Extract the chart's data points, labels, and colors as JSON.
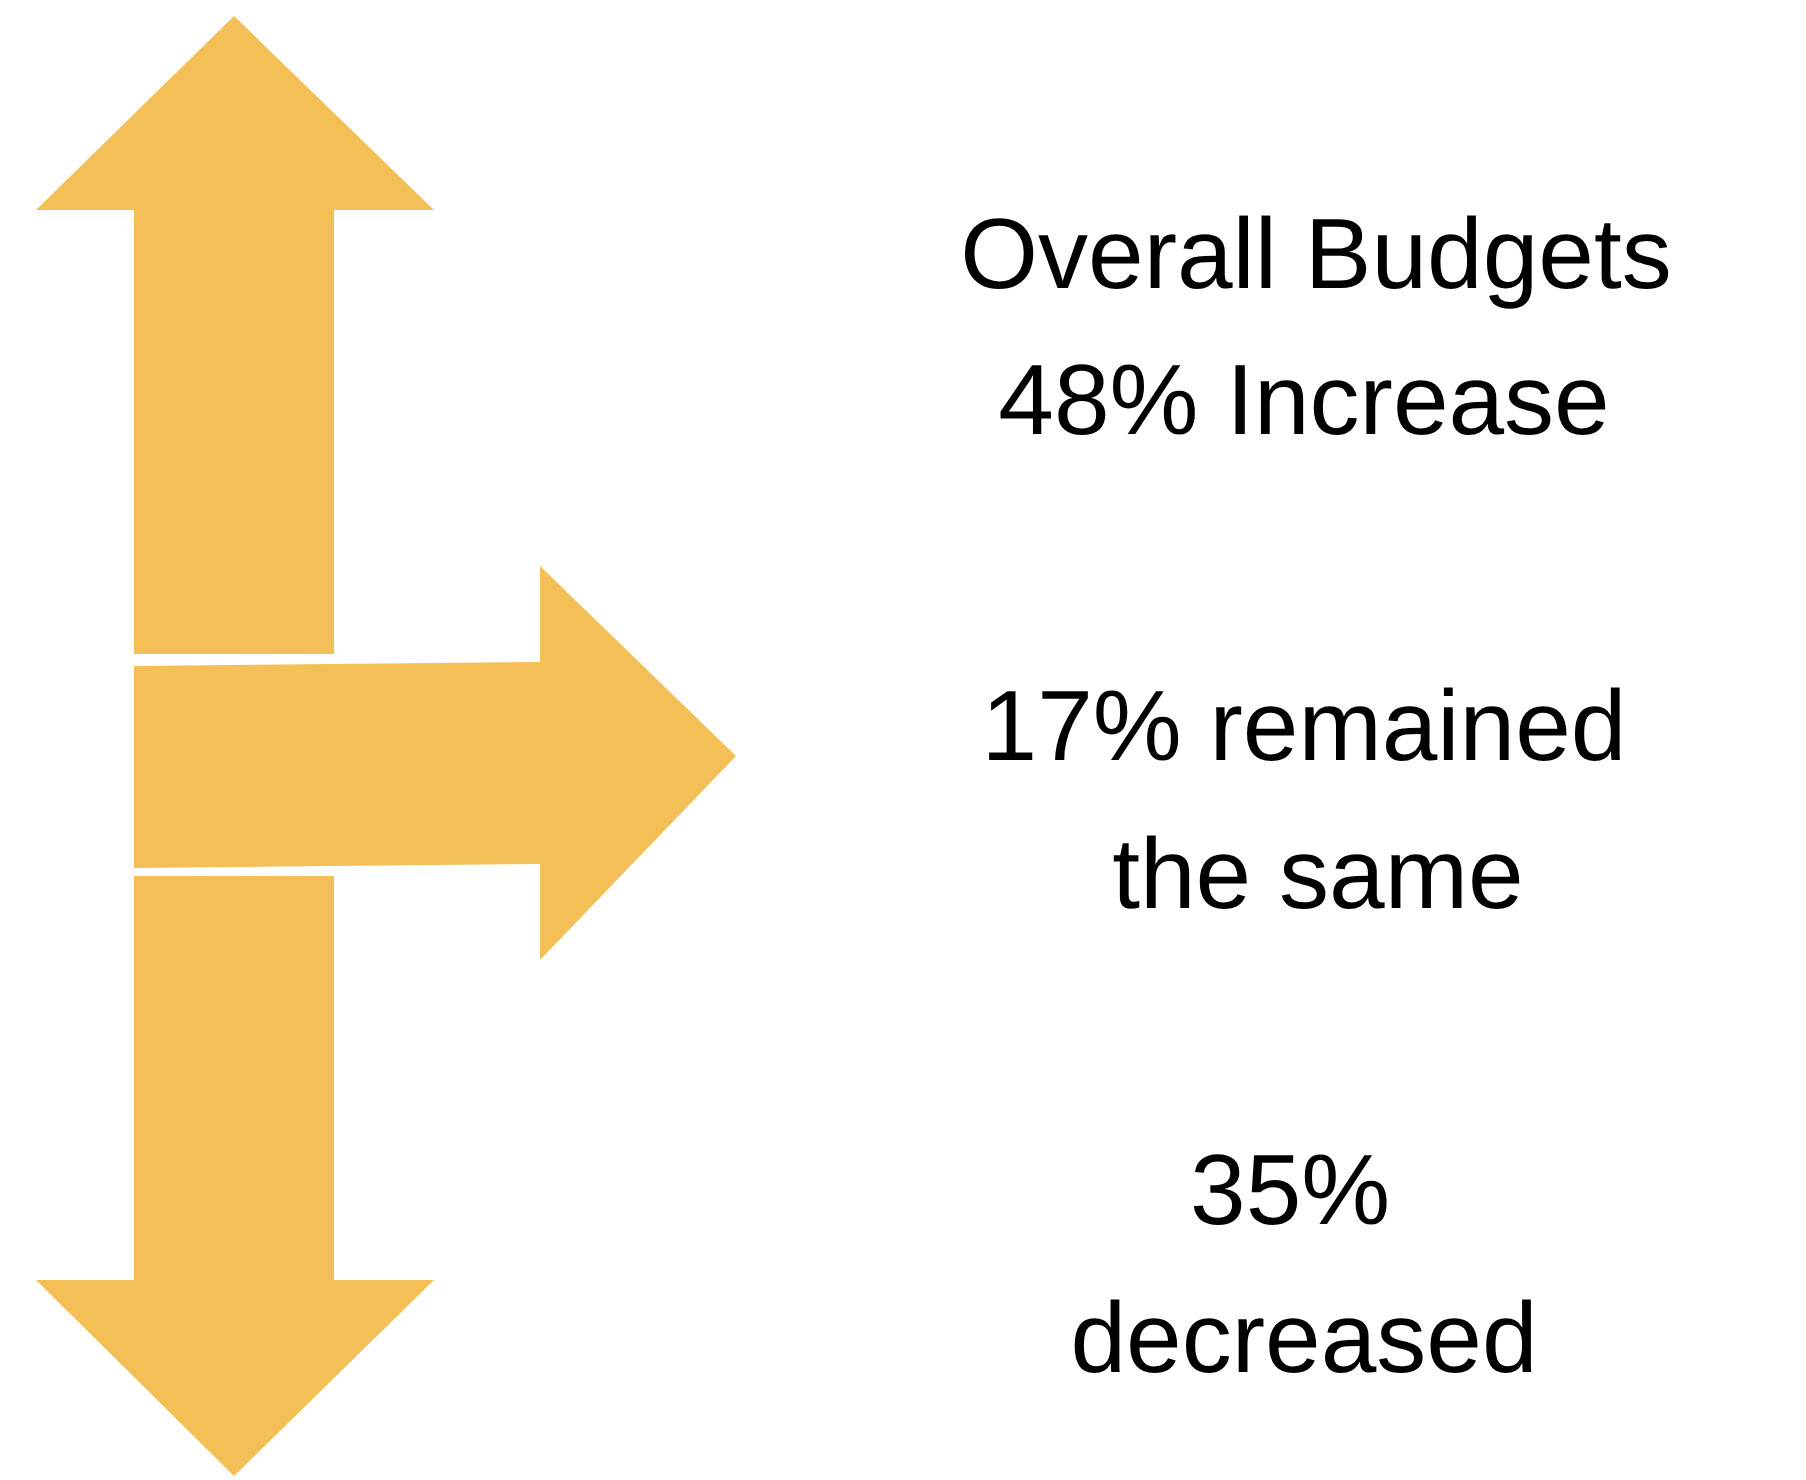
{
  "chart_data": {
    "type": "other",
    "title": "Overall Budgets",
    "color": "#f5bf57",
    "categories": [
      "Increase",
      "remained the same",
      "decreased"
    ],
    "values": [
      48,
      17,
      35
    ],
    "value_labels": [
      "48%",
      "17%",
      "35%"
    ]
  }
}
